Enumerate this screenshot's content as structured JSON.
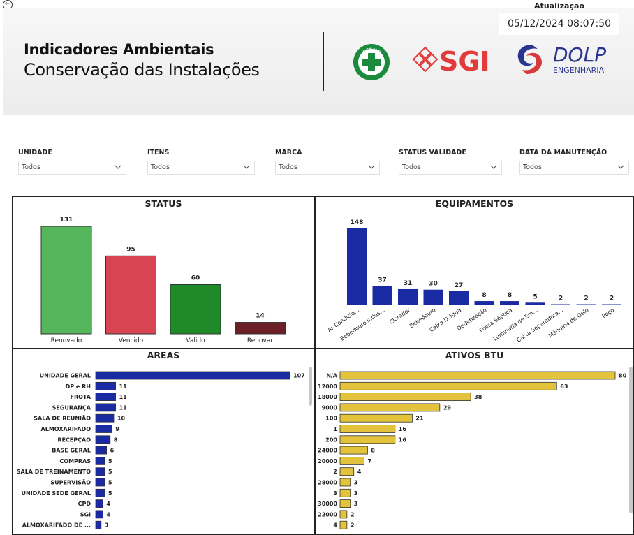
{
  "header": {
    "title_line1": "Indicadores Ambientais",
    "title_line2": "Conservação das Instalações",
    "sesmt_top": "SESMT",
    "sesmt_bottom": "SEGURANÇA",
    "sgi": "SGI",
    "dolp_main": "DOLP",
    "dolp_sub": "ENGENHARIA",
    "update_label": "Atualização",
    "update_value": "05/12/2024 08:07:50"
  },
  "filters": [
    {
      "label": "UNIDADE",
      "value": "Todos"
    },
    {
      "label": "ITENS",
      "value": "Todos"
    },
    {
      "label": "MARCA",
      "value": "Todos"
    },
    {
      "label": "STATUS VALIDADE",
      "value": "Todos"
    },
    {
      "label": "DATA DA MANUTENÇÃO",
      "value": "Todos"
    }
  ],
  "colors": {
    "renovado": "#55b65b",
    "vencido": "#d84451",
    "valido": "#1f8a28",
    "renovar": "#6b1f26",
    "navy": "#1a2aa3",
    "gold": "#e2c33b"
  },
  "chart_data": [
    {
      "type": "bar",
      "title": "STATUS",
      "categories": [
        "Renovado",
        "Vencido",
        "Valido",
        "Renovar"
      ],
      "values": [
        131,
        95,
        60,
        14
      ]
    },
    {
      "type": "bar",
      "title": "EQUIPAMENTOS",
      "categories": [
        "Ar Condicio...",
        "Bebedouro Indus...",
        "Clorador",
        "Bebedouro",
        "Caixa D'água",
        "Dedetização",
        "Fossa Séptica",
        "Luminária de Em...",
        "Caixa Separadora...",
        "Máquina de Gelo",
        "Poço"
      ],
      "values": [
        148,
        37,
        31,
        30,
        27,
        8,
        8,
        5,
        2,
        2,
        2
      ]
    },
    {
      "type": "bar",
      "orientation": "horizontal",
      "title": "AREAS",
      "categories": [
        "UNIDADE GERAL",
        "DP e RH",
        "FROTA",
        "SEGURANÇA",
        "SALA DE REUNIÃO",
        "ALMOXARIFADO",
        "RECEPÇÃO",
        "BASE GERAL",
        "COMPRAS",
        "SALA DE TREINAMENTO",
        "SUPERVISÃO",
        "UNIDADE SEDE GERAL",
        "CPD",
        "SGI",
        "ALMOXARIFADO DE ..."
      ],
      "values": [
        107,
        11,
        11,
        11,
        10,
        9,
        8,
        6,
        5,
        5,
        5,
        5,
        4,
        4,
        3
      ]
    },
    {
      "type": "bar",
      "orientation": "horizontal",
      "title": "ATIVOS BTU",
      "categories": [
        "N/A",
        "12000",
        "18000",
        "9000",
        "100",
        "1",
        "200",
        "24000",
        "20000",
        "2",
        "28000",
        "3",
        "30000",
        "22000",
        "4"
      ],
      "values": [
        80,
        63,
        38,
        29,
        21,
        16,
        16,
        8,
        7,
        4,
        3,
        3,
        3,
        2,
        2
      ]
    }
  ]
}
